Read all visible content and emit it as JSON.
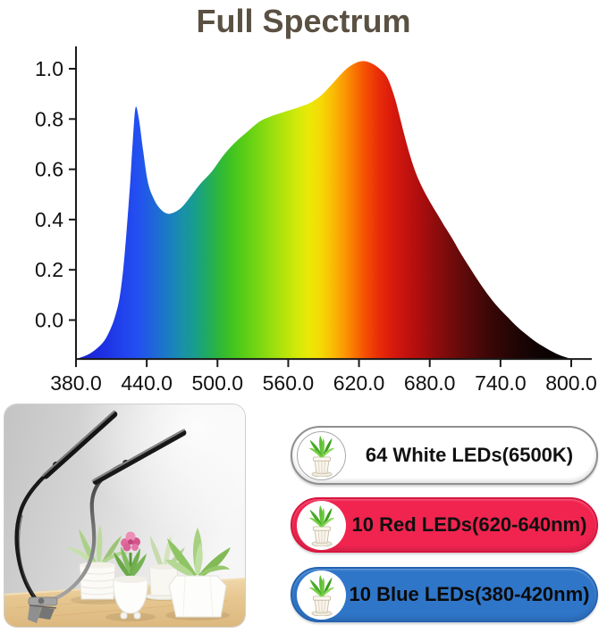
{
  "title": "Full Spectrum",
  "chart_data": {
    "type": "area",
    "title": "Full Spectrum",
    "xlim": [
      380,
      800
    ],
    "ylim": [
      -0.155,
      1.09
    ],
    "baseline": -0.155,
    "x_ticks": [
      {
        "label": "380.0",
        "nm": 380
      },
      {
        "label": "440.0",
        "nm": 440
      },
      {
        "label": "500.0",
        "nm": 500
      },
      {
        "label": "560.0",
        "nm": 560
      },
      {
        "label": "620.0",
        "nm": 620
      },
      {
        "label": "680.0",
        "nm": 680
      },
      {
        "label": "740.0",
        "nm": 740
      },
      {
        "label": "800.0",
        "nm": 800
      }
    ],
    "y_ticks": [
      {
        "label": "1.0",
        "value": 1.0
      },
      {
        "label": "0.8",
        "value": 0.8
      },
      {
        "label": "0.6",
        "value": 0.6
      },
      {
        "label": "0.4",
        "value": 0.4
      },
      {
        "label": "0.2",
        "value": 0.2
      },
      {
        "label": "0.0",
        "value": 0.0
      }
    ],
    "points": [
      [
        380,
        -0.155
      ],
      [
        390,
        -0.138
      ],
      [
        398,
        -0.112
      ],
      [
        404,
        -0.082
      ],
      [
        409,
        -0.038
      ],
      [
        413,
        0.012
      ],
      [
        417,
        0.09
      ],
      [
        420,
        0.2
      ],
      [
        423,
        0.36
      ],
      [
        426,
        0.55
      ],
      [
        428,
        0.7
      ],
      [
        430.5,
        0.845
      ],
      [
        433.5,
        0.795
      ],
      [
        437,
        0.672
      ],
      [
        441,
        0.548
      ],
      [
        446,
        0.482
      ],
      [
        451,
        0.445
      ],
      [
        457,
        0.424
      ],
      [
        463,
        0.428
      ],
      [
        470,
        0.45
      ],
      [
        478,
        0.497
      ],
      [
        486,
        0.545
      ],
      [
        495,
        0.59
      ],
      [
        505,
        0.655
      ],
      [
        515,
        0.707
      ],
      [
        525,
        0.748
      ],
      [
        535,
        0.788
      ],
      [
        545,
        0.81
      ],
      [
        555,
        0.826
      ],
      [
        563,
        0.838
      ],
      [
        572,
        0.852
      ],
      [
        580,
        0.868
      ],
      [
        588,
        0.894
      ],
      [
        595,
        0.928
      ],
      [
        602,
        0.964
      ],
      [
        608,
        0.994
      ],
      [
        614,
        1.015
      ],
      [
        620,
        1.028
      ],
      [
        626,
        1.029
      ],
      [
        632,
        1.018
      ],
      [
        638,
        0.998
      ],
      [
        644,
        0.965
      ],
      [
        650,
        0.89
      ],
      [
        654,
        0.82
      ],
      [
        658,
        0.745
      ],
      [
        662,
        0.675
      ],
      [
        666,
        0.615
      ],
      [
        670,
        0.565
      ],
      [
        675,
        0.515
      ],
      [
        680,
        0.472
      ],
      [
        686,
        0.425
      ],
      [
        692,
        0.378
      ],
      [
        699,
        0.325
      ],
      [
        706,
        0.268
      ],
      [
        714,
        0.208
      ],
      [
        722,
        0.15
      ],
      [
        730,
        0.097
      ],
      [
        738,
        0.051
      ],
      [
        746,
        0.012
      ],
      [
        754,
        -0.026
      ],
      [
        762,
        -0.058
      ],
      [
        771,
        -0.09
      ],
      [
        781,
        -0.118
      ],
      [
        790,
        -0.139
      ],
      [
        800,
        -0.155
      ]
    ],
    "gradient_stops": [
      [
        380,
        "#1a1fd0"
      ],
      [
        400,
        "#1c2de0"
      ],
      [
        418,
        "#2141ec"
      ],
      [
        432,
        "#234ff2"
      ],
      [
        445,
        "#1f65da"
      ],
      [
        458,
        "#1b7cc3"
      ],
      [
        470,
        "#1990aa"
      ],
      [
        480,
        "#189c90"
      ],
      [
        490,
        "#1fa967"
      ],
      [
        500,
        "#2cb53f"
      ],
      [
        510,
        "#3dc124"
      ],
      [
        520,
        "#53cb18"
      ],
      [
        532,
        "#71d513"
      ],
      [
        545,
        "#95dd0f"
      ],
      [
        557,
        "#b6e40b"
      ],
      [
        568,
        "#d4e909"
      ],
      [
        578,
        "#eae807"
      ],
      [
        588,
        "#f5d805"
      ],
      [
        598,
        "#f9bb04"
      ],
      [
        608,
        "#fa9703"
      ],
      [
        617,
        "#f97102"
      ],
      [
        626,
        "#f44d03"
      ],
      [
        636,
        "#ea2f07"
      ],
      [
        648,
        "#d91a0c"
      ],
      [
        660,
        "#c3120f"
      ],
      [
        672,
        "#ad0e0e"
      ],
      [
        685,
        "#8f0c0c"
      ],
      [
        700,
        "#700b0b"
      ],
      [
        715,
        "#550909"
      ],
      [
        730,
        "#3c0707"
      ],
      [
        750,
        "#240505"
      ],
      [
        770,
        "#110303"
      ],
      [
        800,
        "#000000"
      ]
    ]
  },
  "badges": [
    {
      "label": "64 White LEDs(6500K)",
      "bg": "#ffffff",
      "border": "#8f8f8f",
      "text": "#111111",
      "ring": "#a8a8a8"
    },
    {
      "label": "10 Red LEDs(620-640nm)",
      "bg": "#f0244f",
      "border": "#d8143e",
      "text": "#101010",
      "ring": "transparent"
    },
    {
      "label": "10 Blue LEDs(380-420nm)",
      "bg": "#2f76c9",
      "border": "#2263b2",
      "text": "#0b0b0b",
      "ring": "transparent"
    }
  ]
}
